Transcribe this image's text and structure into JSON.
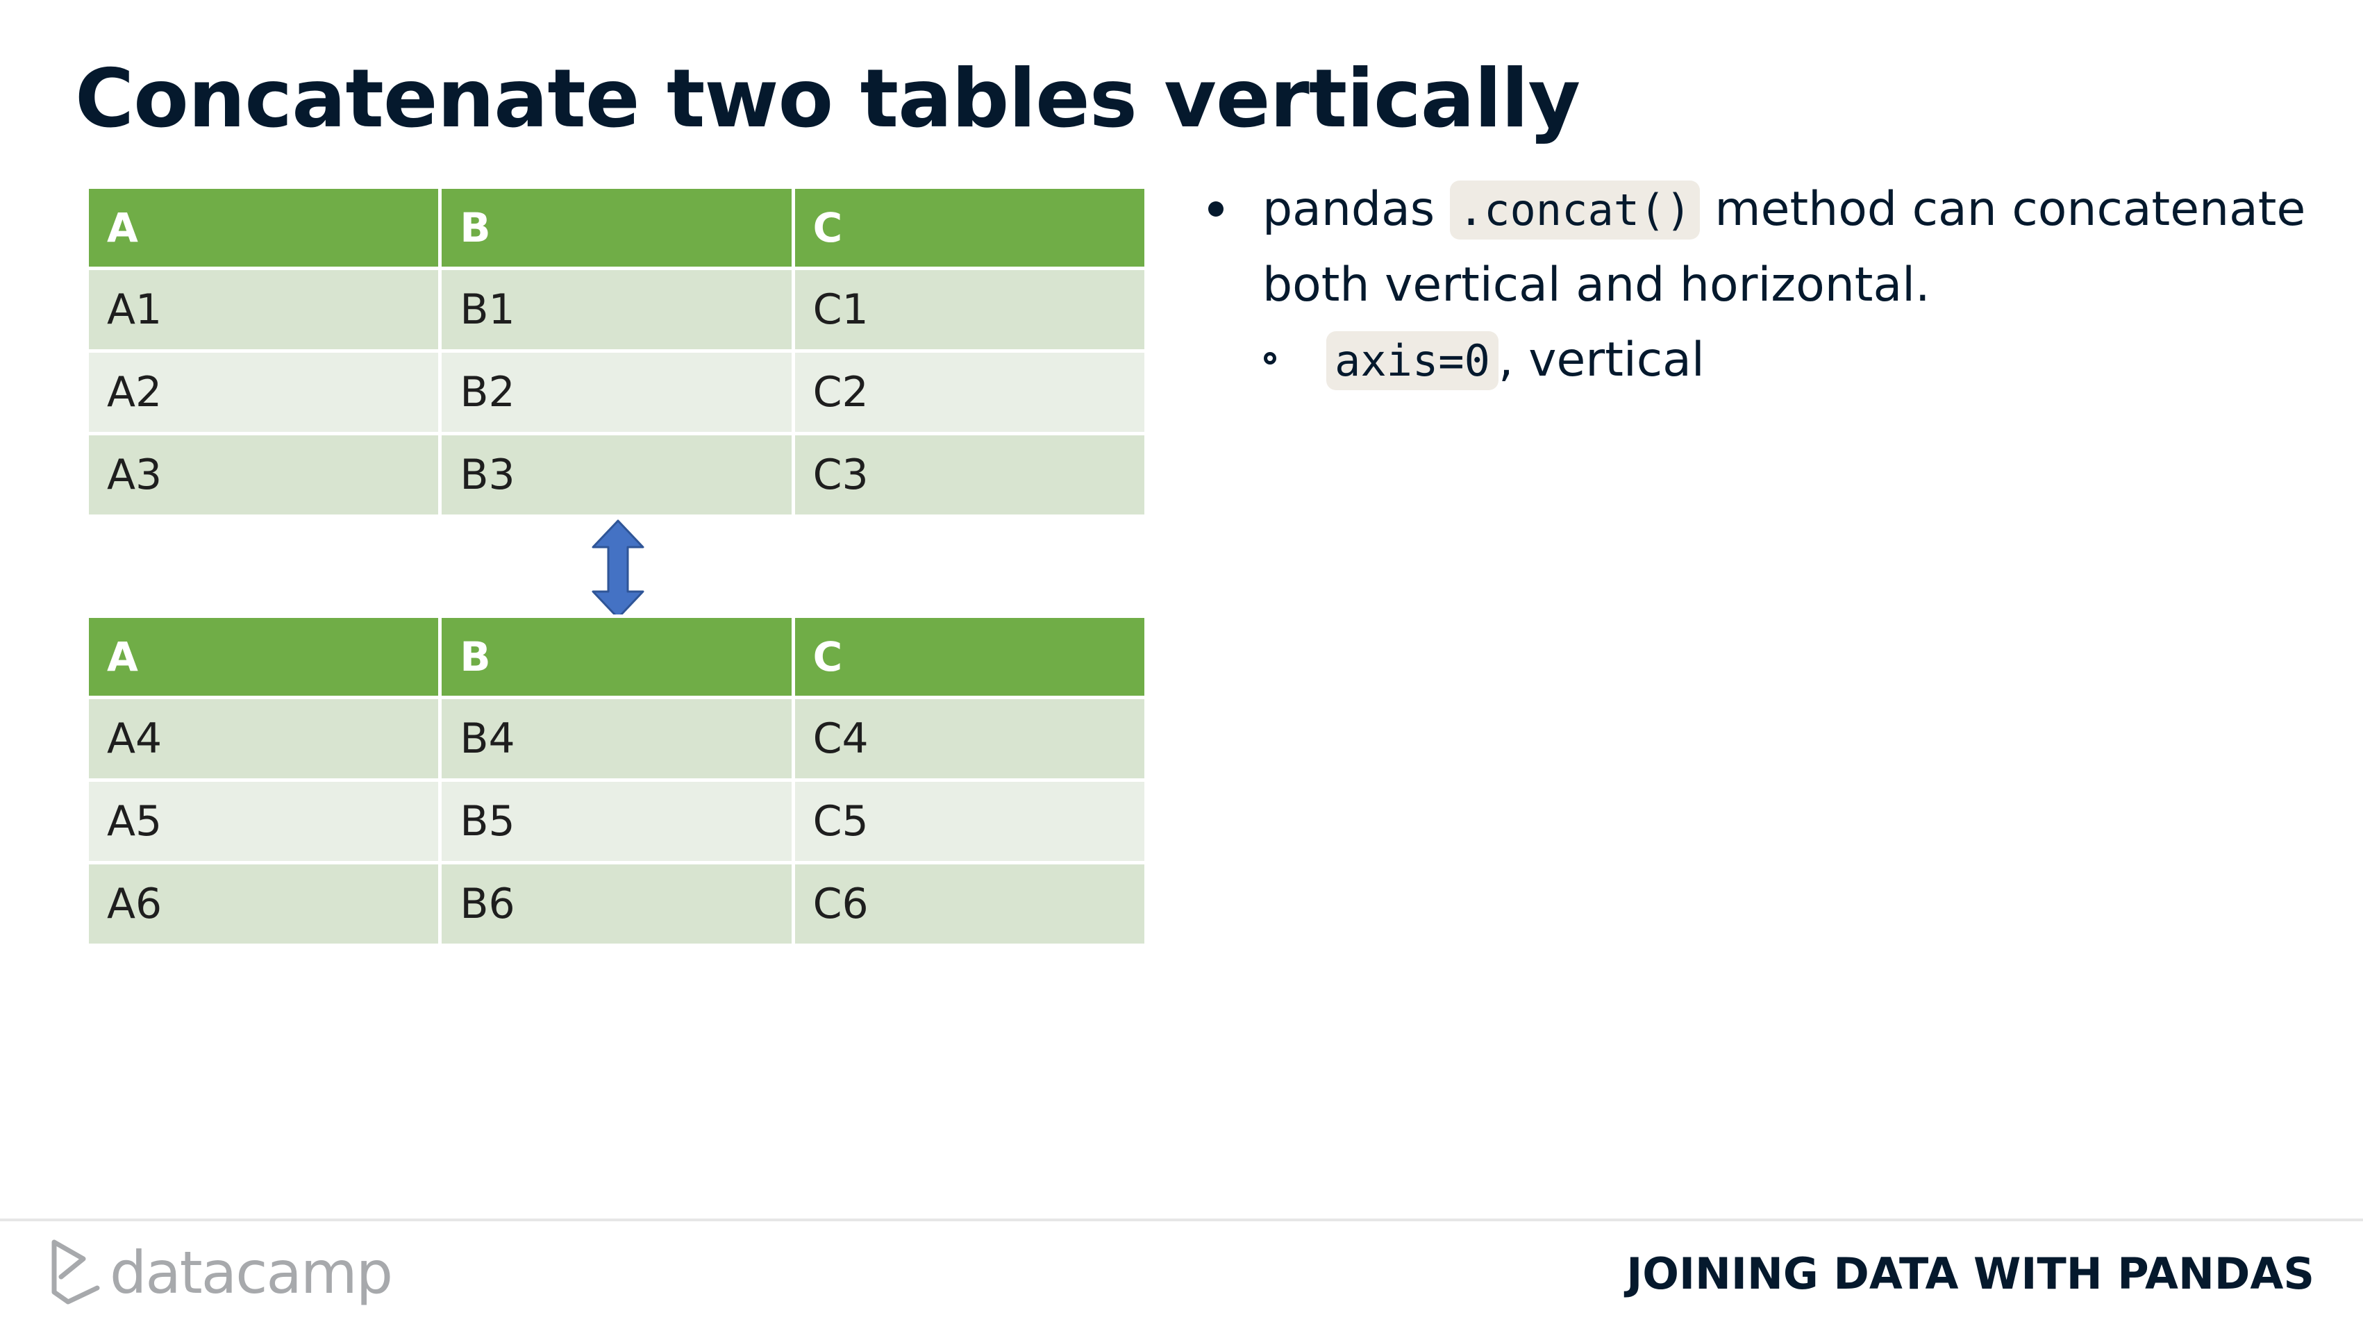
{
  "slide": {
    "title": "Concatenate two tables vertically"
  },
  "tables": {
    "top": {
      "headers": [
        "A",
        "B",
        "C"
      ],
      "rows": [
        [
          "A1",
          "B1",
          "C1"
        ],
        [
          "A2",
          "B2",
          "C2"
        ],
        [
          "A3",
          "B3",
          "C3"
        ]
      ]
    },
    "bottom": {
      "headers": [
        "A",
        "B",
        "C"
      ],
      "rows": [
        [
          "A4",
          "B4",
          "C4"
        ],
        [
          "A5",
          "B5",
          "C5"
        ],
        [
          "A6",
          "B6",
          "C6"
        ]
      ]
    }
  },
  "arrow": {
    "icon": "vertical-double-arrow-icon",
    "color": "#4472c4"
  },
  "bullets": {
    "main": {
      "prefix": "pandas",
      "code": ".concat()",
      "suffix": "method can concatenate both vertical and horizontal."
    },
    "sub": {
      "code": "axis=0",
      "suffix": ", vertical"
    }
  },
  "footer": {
    "logo_text": "datacamp",
    "logo_icon": "datacamp-logo-icon",
    "course_title": "JOINING DATA WITH PANDAS"
  },
  "colors": {
    "header_green": "#70ad47",
    "row_odd": "#d8e4d0",
    "row_even": "#e9efe6",
    "title_navy": "#05192d"
  }
}
